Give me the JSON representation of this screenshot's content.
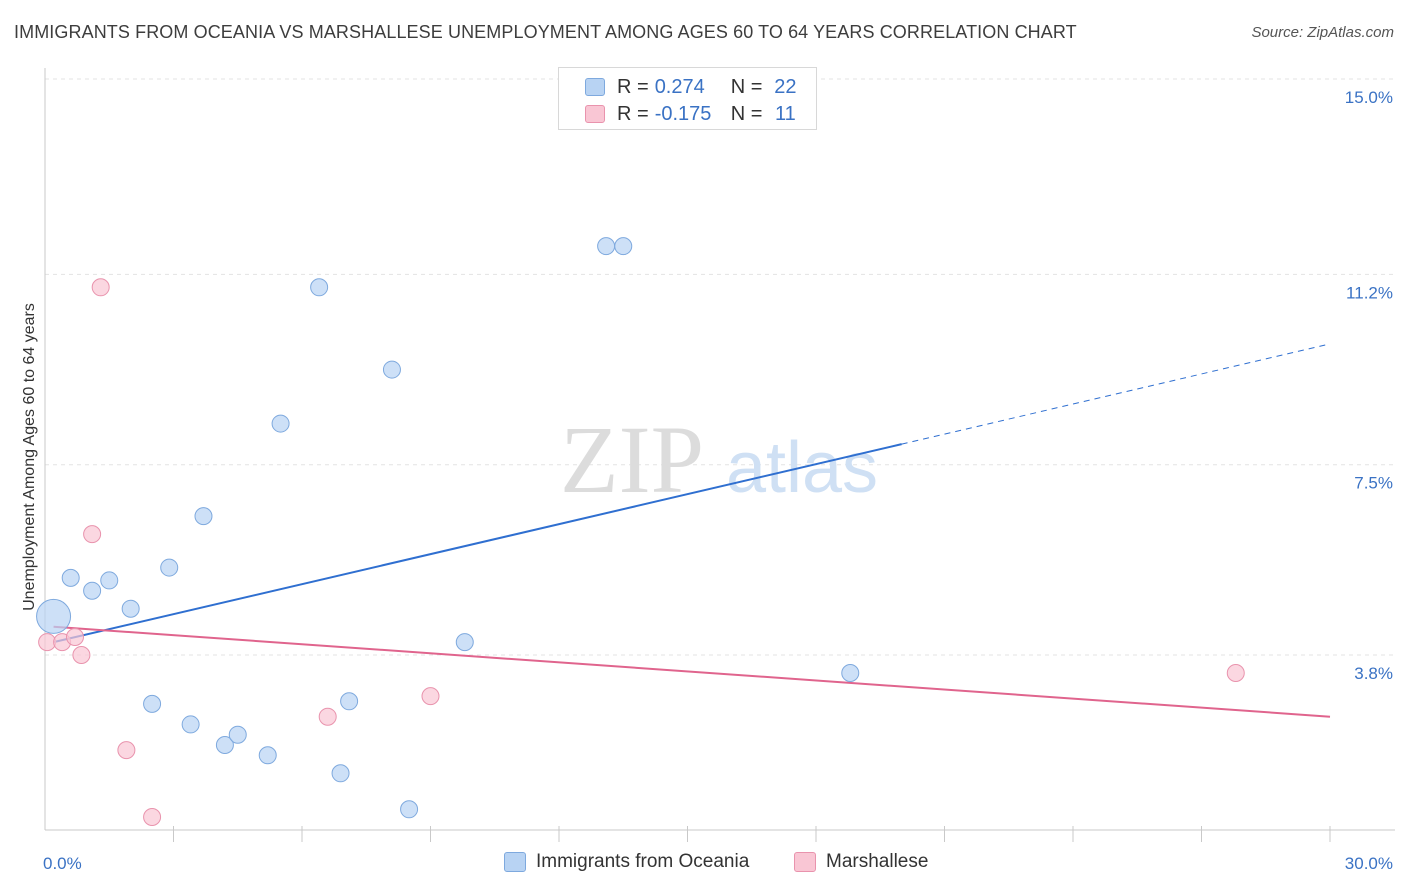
{
  "title": "IMMIGRANTS FROM OCEANIA VS MARSHALLESE UNEMPLOYMENT AMONG AGES 60 TO 64 YEARS CORRELATION CHART",
  "source": "Source: ZipAtlas.com",
  "watermark": {
    "zip": "ZIP",
    "atlas": "atlas"
  },
  "legend": {
    "rows": [
      {
        "r_label": "R =",
        "r_value": "0.274",
        "n_label": "N =",
        "n_value": "22",
        "color": "#b8d3f3"
      },
      {
        "r_label": "R =",
        "r_value": "-0.175",
        "n_label": "N =",
        "n_value": "11",
        "color": "#f9c6d4"
      }
    ]
  },
  "bottom_legend": {
    "items": [
      {
        "label": "Immigrants from Oceania",
        "color": "#b8d3f3"
      },
      {
        "label": "Marshallese",
        "color": "#f9c6d4"
      }
    ]
  },
  "chart_data": {
    "type": "scatter",
    "title": "IMMIGRANTS FROM OCEANIA VS MARSHALLESE UNEMPLOYMENT AMONG AGES 60 TO 64 YEARS CORRELATION CHART",
    "xlabel": "",
    "ylabel": "Unemployment Among Ages 60 to 64 years",
    "xlim": [
      0,
      30
    ],
    "ylim": [
      0,
      15.5
    ],
    "x_tick_labels": [
      {
        "value": 0,
        "label": "0.0%"
      },
      {
        "value": 30,
        "label": "30.0%"
      }
    ],
    "y_tick_labels": [
      {
        "value": 3.8,
        "label": "3.8%"
      },
      {
        "value": 7.5,
        "label": "7.5%"
      },
      {
        "value": 11.2,
        "label": "11.2%"
      },
      {
        "value": 15.0,
        "label": "15.0%"
      }
    ],
    "grid": true,
    "legend_position": "top-center",
    "series": [
      {
        "name": "Immigrants from Oceania",
        "color": "#b8d3f3",
        "stroke": "#7ea9de",
        "line_color": "#2f6fd0",
        "points": [
          {
            "x": 0.2,
            "y": 4.55,
            "big": true
          },
          {
            "x": 0.6,
            "y": 5.3
          },
          {
            "x": 1.1,
            "y": 5.05
          },
          {
            "x": 1.5,
            "y": 5.25
          },
          {
            "x": 2.0,
            "y": 4.7
          },
          {
            "x": 2.5,
            "y": 2.85
          },
          {
            "x": 2.9,
            "y": 5.5
          },
          {
            "x": 3.4,
            "y": 2.45
          },
          {
            "x": 3.7,
            "y": 6.5
          },
          {
            "x": 4.2,
            "y": 2.05
          },
          {
            "x": 4.5,
            "y": 2.25
          },
          {
            "x": 5.2,
            "y": 1.85
          },
          {
            "x": 5.5,
            "y": 8.3
          },
          {
            "x": 6.4,
            "y": 10.95
          },
          {
            "x": 6.9,
            "y": 1.5
          },
          {
            "x": 7.1,
            "y": 2.9
          },
          {
            "x": 8.1,
            "y": 9.35
          },
          {
            "x": 8.5,
            "y": 0.8
          },
          {
            "x": 9.8,
            "y": 4.05
          },
          {
            "x": 13.1,
            "y": 11.75
          },
          {
            "x": 13.5,
            "y": 11.75
          },
          {
            "x": 18.8,
            "y": 3.45
          }
        ],
        "trend": {
          "x0": 0.2,
          "y0": 4.05,
          "x1": 20.0,
          "y1": 7.9,
          "x2": 30.0,
          "y2": 9.85
        }
      },
      {
        "name": "Marshallese",
        "color": "#f9c6d4",
        "stroke": "#e993ad",
        "line_color": "#e0648d",
        "points": [
          {
            "x": 0.05,
            "y": 4.05
          },
          {
            "x": 0.4,
            "y": 4.05
          },
          {
            "x": 0.7,
            "y": 4.15
          },
          {
            "x": 0.85,
            "y": 3.8
          },
          {
            "x": 1.1,
            "y": 6.15
          },
          {
            "x": 1.3,
            "y": 10.95
          },
          {
            "x": 1.9,
            "y": 1.95
          },
          {
            "x": 2.5,
            "y": 0.65
          },
          {
            "x": 6.6,
            "y": 2.6
          },
          {
            "x": 9.0,
            "y": 3.0
          },
          {
            "x": 27.8,
            "y": 3.45
          }
        ],
        "trend": {
          "x0": 0.2,
          "y0": 4.35,
          "x1": 30.0,
          "y1": 2.6
        }
      }
    ]
  }
}
